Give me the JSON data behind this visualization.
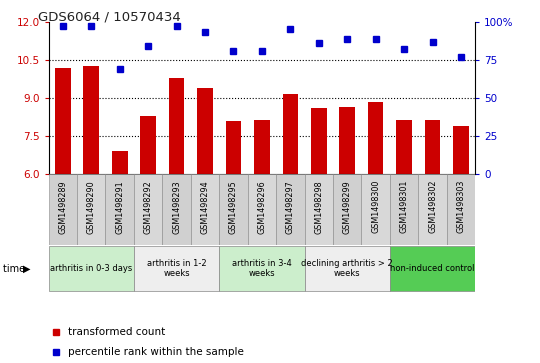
{
  "title": "GDS6064 / 10570434",
  "samples": [
    "GSM1498289",
    "GSM1498290",
    "GSM1498291",
    "GSM1498292",
    "GSM1498293",
    "GSM1498294",
    "GSM1498295",
    "GSM1498296",
    "GSM1498297",
    "GSM1498298",
    "GSM1498299",
    "GSM1498300",
    "GSM1498301",
    "GSM1498302",
    "GSM1498303"
  ],
  "bar_values": [
    10.2,
    10.25,
    6.9,
    8.3,
    9.8,
    9.4,
    8.1,
    8.15,
    9.15,
    8.6,
    8.65,
    8.85,
    8.15,
    8.15,
    7.9
  ],
  "dot_values": [
    97,
    97,
    69,
    84,
    97,
    93,
    81,
    81,
    95,
    86,
    89,
    89,
    82,
    87,
    77
  ],
  "ylim_left": [
    6,
    12
  ],
  "ylim_right": [
    0,
    100
  ],
  "yticks_left": [
    6,
    7.5,
    9,
    10.5,
    12
  ],
  "yticks_right": [
    0,
    25,
    50,
    75,
    100
  ],
  "bar_color": "#cc0000",
  "dot_color": "#0000cc",
  "groups": [
    {
      "label": "arthritis in 0-3 days",
      "start": 0,
      "end": 3,
      "color": "#cceecc"
    },
    {
      "label": "arthritis in 1-2\nweeks",
      "start": 3,
      "end": 6,
      "color": "#eeeeee"
    },
    {
      "label": "arthritis in 3-4\nweeks",
      "start": 6,
      "end": 9,
      "color": "#cceecc"
    },
    {
      "label": "declining arthritis > 2\nweeks",
      "start": 9,
      "end": 12,
      "color": "#eeeeee"
    },
    {
      "label": "non-induced control",
      "start": 12,
      "end": 15,
      "color": "#55cc55"
    }
  ],
  "legend_items": [
    {
      "label": "transformed count",
      "color": "#cc0000"
    },
    {
      "label": "percentile rank within the sample",
      "color": "#0000cc"
    }
  ],
  "left_tick_color": "#cc0000",
  "right_tick_color": "#0000cc",
  "gridline_color": "black",
  "gridline_vals": [
    7.5,
    9.0,
    10.5
  ],
  "bar_width": 0.55
}
